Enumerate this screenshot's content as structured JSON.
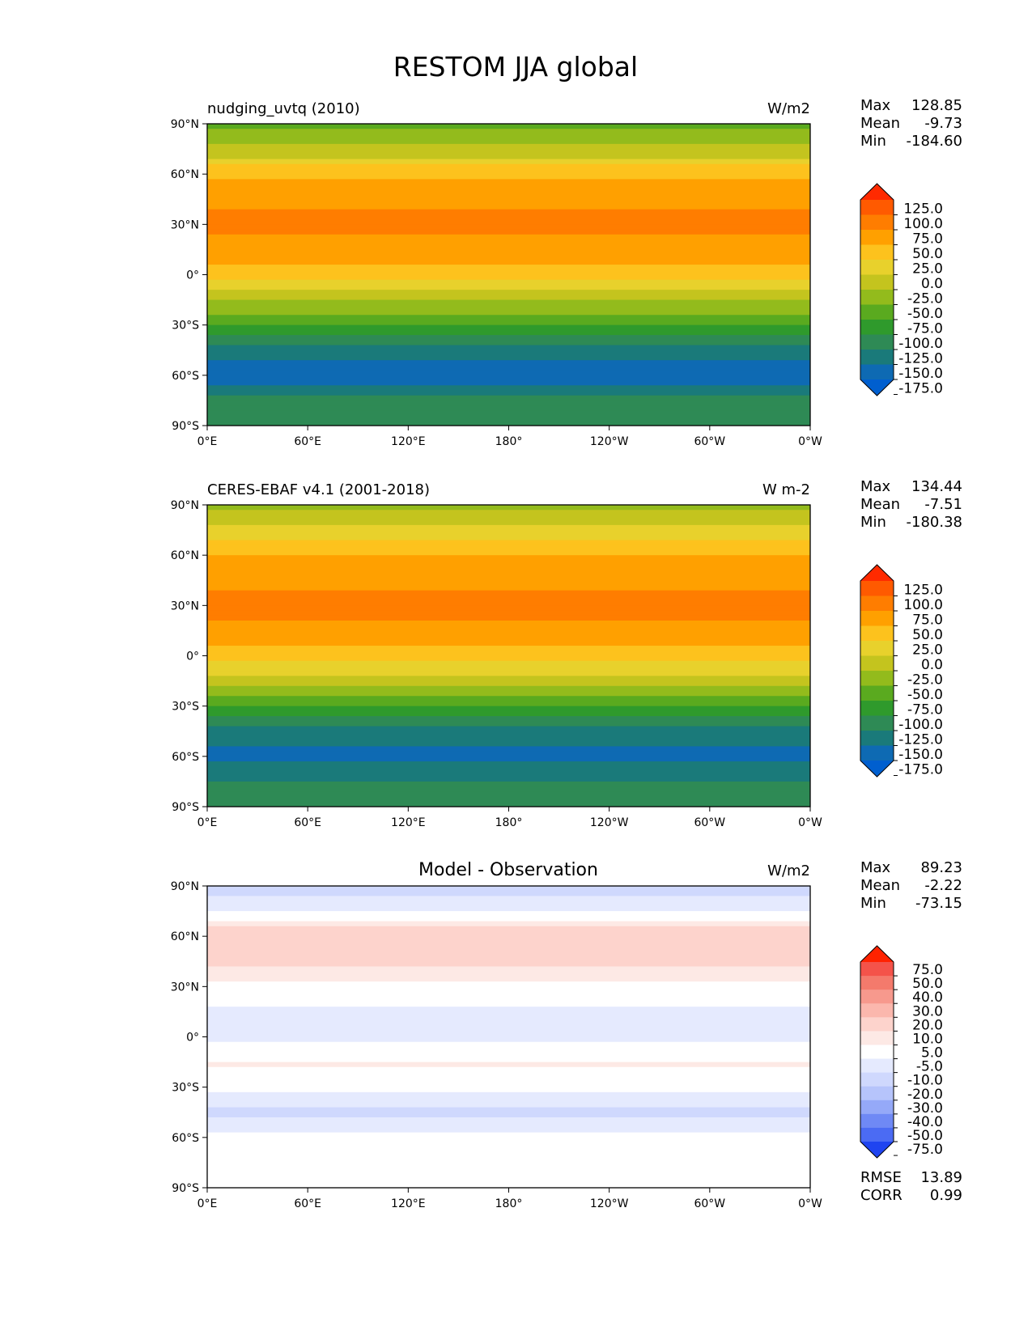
{
  "figure": {
    "title": "RESTOM JJA global"
  },
  "chart_data": [
    {
      "type": "heatmap",
      "title": "nudging_uvtq (2010)",
      "units": "W/m2",
      "stats": [
        {
          "label": "Max",
          "value": "128.85"
        },
        {
          "label": "Mean",
          "value": "-9.73"
        },
        {
          "label": "Min",
          "value": "-184.60"
        }
      ],
      "colorbar": {
        "levels": [
          "125.0",
          "100.0",
          "75.0",
          "50.0",
          "25.0",
          "0.0",
          "-25.0",
          "-50.0",
          "-75.0",
          "-100.0",
          "-125.0",
          "-150.0",
          "-175.0"
        ],
        "colors": [
          "#ff2a00",
          "#ff5a00",
          "#ff7d00",
          "#ffa000",
          "#fdc21d",
          "#e8d12c",
          "#c4c41e",
          "#93bb1c",
          "#5aaa1f",
          "#2f9a2c",
          "#2e8a55",
          "#1a7a7a",
          "#0e6ab3",
          "#005fcf"
        ],
        "extend": "both"
      },
      "x_ticks": [
        "0°E",
        "60°E",
        "120°E",
        "180°",
        "120°W",
        "60°W",
        "0°W"
      ],
      "y_ticks": [
        "90°N",
        "60°N",
        "30°N",
        "0°",
        "30°S",
        "60°S",
        "90°S"
      ],
      "zonal_profile": [
        {
          "lat": 90,
          "value": -60
        },
        {
          "lat": 75,
          "value": -20
        },
        {
          "lat": 60,
          "value": 45
        },
        {
          "lat": 45,
          "value": 70
        },
        {
          "lat": 30,
          "value": 80
        },
        {
          "lat": 15,
          "value": 65
        },
        {
          "lat": 0,
          "value": 35
        },
        {
          "lat": -15,
          "value": -20
        },
        {
          "lat": -30,
          "value": -75
        },
        {
          "lat": -45,
          "value": -140
        },
        {
          "lat": -60,
          "value": -165
        },
        {
          "lat": -75,
          "value": -120
        },
        {
          "lat": -90,
          "value": -100
        }
      ]
    },
    {
      "type": "heatmap",
      "title": "CERES-EBAF v4.1 (2001-2018)",
      "units": "W m-2",
      "stats": [
        {
          "label": "Max",
          "value": "134.44"
        },
        {
          "label": "Mean",
          "value": "-7.51"
        },
        {
          "label": "Min",
          "value": "-180.38"
        }
      ],
      "colorbar": {
        "levels": [
          "125.0",
          "100.0",
          "75.0",
          "50.0",
          "25.0",
          "0.0",
          "-25.0",
          "-50.0",
          "-75.0",
          "-100.0",
          "-125.0",
          "-150.0",
          "-175.0"
        ],
        "colors": [
          "#ff2a00",
          "#ff5a00",
          "#ff7d00",
          "#ffa000",
          "#fdc21d",
          "#e8d12c",
          "#c4c41e",
          "#93bb1c",
          "#5aaa1f",
          "#2f9a2c",
          "#2e8a55",
          "#1a7a7a",
          "#0e6ab3",
          "#005fcf"
        ],
        "extend": "both"
      },
      "x_ticks": [
        "0°E",
        "60°E",
        "120°E",
        "180°",
        "120°W",
        "60°W",
        "0°W"
      ],
      "y_ticks": [
        "90°N",
        "60°N",
        "30°N",
        "0°",
        "30°S",
        "60°S",
        "90°S"
      ],
      "zonal_profile": [
        {
          "lat": 90,
          "value": -35
        },
        {
          "lat": 75,
          "value": 10
        },
        {
          "lat": 60,
          "value": 50
        },
        {
          "lat": 45,
          "value": 70
        },
        {
          "lat": 30,
          "value": 85
        },
        {
          "lat": 15,
          "value": 70
        },
        {
          "lat": 0,
          "value": 40
        },
        {
          "lat": -15,
          "value": -15
        },
        {
          "lat": -30,
          "value": -75
        },
        {
          "lat": -45,
          "value": -135
        },
        {
          "lat": -60,
          "value": -160
        },
        {
          "lat": -75,
          "value": -125
        },
        {
          "lat": -90,
          "value": -110
        }
      ]
    },
    {
      "type": "heatmap",
      "title": "Model - Observation",
      "units": "W/m2",
      "stats": [
        {
          "label": "Max",
          "value": "89.23"
        },
        {
          "label": "Mean",
          "value": "-2.22"
        },
        {
          "label": "Min",
          "value": "-73.15"
        }
      ],
      "colorbar": {
        "levels": [
          "75.0",
          "50.0",
          "40.0",
          "30.0",
          "20.0",
          "10.0",
          "5.0",
          "-5.0",
          "-10.0",
          "-20.0",
          "-30.0",
          "-40.0",
          "-50.0",
          "-75.0"
        ],
        "colors": [
          "#ff2200",
          "#f4534a",
          "#f47a6c",
          "#f7998d",
          "#fbb7ad",
          "#fdd3cc",
          "#fde9e5",
          "#ffffff",
          "#e5eafe",
          "#cfd8fd",
          "#b6c4fb",
          "#95a9f8",
          "#6f89f5",
          "#4b6bf3",
          "#1f44f0"
        ],
        "extend": "both"
      },
      "x_ticks": [
        "0°E",
        "60°E",
        "120°E",
        "180°",
        "120°W",
        "60°W",
        "0°W"
      ],
      "y_ticks": [
        "90°N",
        "60°N",
        "30°N",
        "0°",
        "30°S",
        "60°S",
        "90°S"
      ],
      "metrics": [
        {
          "label": "RMSE",
          "value": "13.89"
        },
        {
          "label": "CORR",
          "value": "0.99"
        }
      ],
      "zonal_profile": [
        {
          "lat": 90,
          "value": -12
        },
        {
          "lat": 75,
          "value": -7
        },
        {
          "lat": 60,
          "value": 18
        },
        {
          "lat": 45,
          "value": 12
        },
        {
          "lat": 30,
          "value": 3
        },
        {
          "lat": 15,
          "value": -6
        },
        {
          "lat": 0,
          "value": -8
        },
        {
          "lat": -15,
          "value": 6
        },
        {
          "lat": -30,
          "value": -4
        },
        {
          "lat": -45,
          "value": -12
        },
        {
          "lat": -60,
          "value": -3
        },
        {
          "lat": -75,
          "value": 1
        },
        {
          "lat": -90,
          "value": 0
        }
      ]
    }
  ]
}
